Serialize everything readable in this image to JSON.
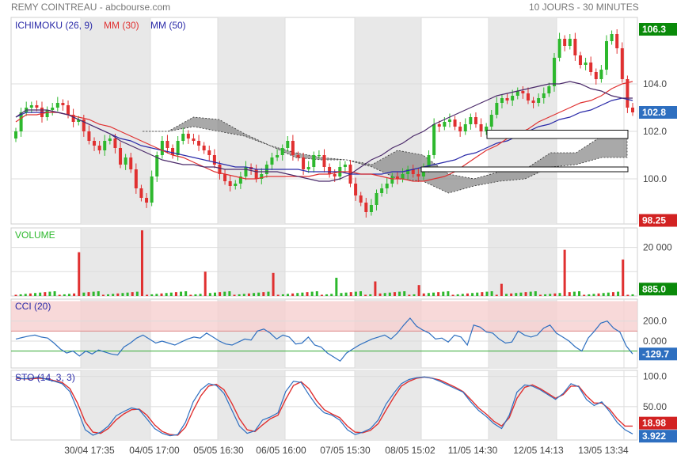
{
  "header": {
    "title": "REMY COINTREAU - abcbourse.com",
    "period": "10 JOURS - 30 MINUTES"
  },
  "colors": {
    "up": "#2db82d",
    "down": "#e03030",
    "ma30": "#e03030",
    "ma50": "#2a2aa8",
    "cloud": "#8c8c8c",
    "band": "#e8e8e8",
    "cci_high": "#f6cfcf",
    "cci_low": "#d3ecd3",
    "sto_k": "#2e6fc0",
    "sto_d": "#e03030"
  },
  "chart_data": [
    {
      "type": "line",
      "id": "price",
      "legend": [
        {
          "name": "ICHIMOKU (26, 9)",
          "color": "#2a2aa8"
        },
        {
          "name": "MM (30)",
          "color": "#e03030"
        },
        {
          "name": "MM (50)",
          "color": "#2a2aa8"
        }
      ],
      "ylim": [
        98.1,
        106.8
      ],
      "yticks": [
        100.0,
        102.0,
        104.0
      ],
      "ytick_labels": [
        "100.0",
        "102.0",
        "104.0"
      ],
      "badges": [
        {
          "value": 106.3,
          "label": "106.3",
          "color": "#0a8a0a"
        },
        {
          "value": 102.8,
          "label": "102.8",
          "color": "#2e6fc0"
        },
        {
          "value": 98.25,
          "label": "98.25",
          "color": "#d22222"
        }
      ],
      "x": [
        "30/04 17:35",
        "04/05 17:00",
        "05/05 16:30",
        "06/05 16:00",
        "07/05 15:30",
        "08/05 15:02",
        "11/05 14:30",
        "12/05 14:13",
        "13/05 13:34"
      ],
      "close_series": [
        102.0,
        102.8,
        103.0,
        103.1,
        103.0,
        102.6,
        102.9,
        103.0,
        103.2,
        103.1,
        102.7,
        102.4,
        102.5,
        102.0,
        101.6,
        101.4,
        101.2,
        101.6,
        101.7,
        101.3,
        100.6,
        100.9,
        100.4,
        99.6,
        99.2,
        99.0,
        100.1,
        101.0,
        101.6,
        101.3,
        101.0,
        101.6,
        101.9,
        101.7,
        101.6,
        101.4,
        101.2,
        101.0,
        100.6,
        100.2,
        99.9,
        99.7,
        99.8,
        100.1,
        100.5,
        100.4,
        100.0,
        100.2,
        100.6,
        100.9,
        101.0,
        101.3,
        101.6,
        101.0,
        100.9,
        100.4,
        100.5,
        101.0,
        101.0,
        100.5,
        100.2,
        100.1,
        100.5,
        100.6,
        99.8,
        99.3,
        99.0,
        98.6,
        98.9,
        99.4,
        99.6,
        99.8,
        100.1,
        100.0,
        100.2,
        100.4,
        100.2,
        100.1,
        100.5,
        101.0,
        102.3,
        102.2,
        102.4,
        102.5,
        102.2,
        102.0,
        102.3,
        102.6,
        102.3,
        102.0,
        102.2,
        102.7,
        103.2,
        103.4,
        103.3,
        103.5,
        103.7,
        103.6,
        103.3,
        103.2,
        103.4,
        103.6,
        103.9,
        105.1,
        105.9,
        105.6,
        105.9,
        105.2,
        104.8,
        104.9,
        104.5,
        104.2,
        104.6,
        105.8,
        106.1,
        105.5,
        104.2,
        103.0,
        102.8
      ],
      "ma30": [
        102.4,
        102.7,
        102.7,
        102.8,
        102.8,
        102.7,
        102.6,
        102.5,
        102.3,
        102.2,
        102.0,
        101.8,
        101.6,
        101.4,
        101.2,
        101.0,
        100.9,
        100.7,
        100.5,
        100.3,
        100.2,
        100.1,
        100.0,
        100.0,
        100.1,
        100.1,
        100.1,
        100.1,
        100.1,
        100.2,
        100.2,
        100.3,
        100.3,
        100.2,
        100.2,
        100.1,
        100.0,
        100.0,
        99.9,
        99.9,
        100.0,
        100.1,
        100.3,
        100.6,
        100.9,
        101.2,
        101.4,
        101.7,
        101.9,
        102.1,
        102.4,
        102.6,
        102.8,
        103.0,
        103.2,
        103.3,
        103.5,
        103.8,
        104.0,
        104.1
      ],
      "ma50": [
        102.6,
        102.8,
        102.8,
        102.8,
        102.8,
        102.7,
        102.5,
        102.3,
        102.1,
        101.9,
        101.7,
        101.6,
        101.4,
        101.3,
        101.2,
        101.1,
        101.0,
        100.9,
        100.8,
        100.7,
        100.6,
        100.5,
        100.5,
        100.4,
        100.4,
        100.4,
        100.4,
        100.4,
        100.3,
        100.3,
        100.3,
        100.3,
        100.2,
        100.2,
        100.2,
        100.2,
        100.3,
        100.3,
        100.4,
        100.5,
        100.6,
        100.7,
        100.8,
        101.0,
        101.1,
        101.3,
        101.5,
        101.6,
        101.8,
        102.0,
        102.2,
        102.3,
        102.5,
        102.6,
        102.8,
        102.9,
        103.1,
        103.3,
        103.4,
        103.3
      ],
      "tenkan": [
        102.6,
        102.9,
        102.9,
        102.9,
        102.8,
        102.7,
        102.5,
        102.3,
        102.1,
        101.9,
        101.6,
        101.4,
        101.2,
        101.0,
        100.8,
        100.7,
        100.6,
        100.6,
        100.5,
        100.5,
        100.4,
        100.4,
        100.4,
        100.3,
        100.3,
        100.3,
        100.2,
        100.1,
        100.0,
        99.9,
        99.9,
        100.0,
        100.2,
        100.5,
        100.8,
        101.0,
        101.3,
        101.5,
        101.8,
        102.0,
        102.3,
        102.5,
        102.7,
        102.9,
        103.1,
        103.3,
        103.5,
        103.6,
        103.7,
        103.8,
        103.9,
        104.0,
        104.0,
        104.1,
        104.0,
        103.8,
        103.7,
        103.5,
        103.4,
        103.4
      ],
      "cloud_a": [
        102.0,
        102.0,
        102.6,
        102.5,
        101.9,
        101.4,
        101.1,
        100.9,
        100.8,
        100.6,
        101.2,
        101.0,
        100.2,
        100.0,
        100.3,
        100.4,
        101.1,
        101.1,
        101.8,
        102.0
      ],
      "cloud_b": [
        102.0,
        102.0,
        102.2,
        102.0,
        101.8,
        101.4,
        100.9,
        100.8,
        100.8,
        100.5,
        100.0,
        99.9,
        99.4,
        99.7,
        99.9,
        100.0,
        100.5,
        100.6,
        100.9,
        100.9
      ],
      "boxes": [
        {
          "from": 102.05,
          "to": 101.7
        },
        {
          "from": 100.5,
          "to": 100.3
        }
      ]
    },
    {
      "type": "bar",
      "id": "volume",
      "title": "VOLUME",
      "yticks": [
        10000,
        20000
      ],
      "ytick_labels": [
        "",
        "20 000"
      ],
      "badge": {
        "value": 885.0,
        "label": "885.0",
        "color": "#0a8a0a"
      },
      "spikes": [
        {
          "index": 13,
          "value": 18000,
          "color": "#e03030"
        },
        {
          "index": 26,
          "value": 27000,
          "color": "#e03030"
        },
        {
          "index": 39,
          "value": 10000,
          "color": "#e03030"
        },
        {
          "index": 53,
          "value": 9500,
          "color": "#e03030"
        },
        {
          "index": 66,
          "value": 7500,
          "color": "#2db82d"
        },
        {
          "index": 74,
          "value": 6000,
          "color": "#e03030"
        },
        {
          "index": 83,
          "value": 4500,
          "color": "#e03030"
        },
        {
          "index": 100,
          "value": 5000,
          "color": "#e03030"
        },
        {
          "index": 113,
          "value": 19000,
          "color": "#e03030"
        },
        {
          "index": 125,
          "value": 15000,
          "color": "#e03030"
        }
      ]
    },
    {
      "type": "line",
      "id": "cci",
      "title": "CCI (20)",
      "ylim": [
        -270,
        420
      ],
      "yticks": [
        200,
        0
      ],
      "ytick_labels": [
        "200.0",
        "0.000"
      ],
      "bands": [
        {
          "from": 100,
          "to": 400
        },
        {
          "from": -250,
          "to": -100
        }
      ],
      "badge": {
        "value": -129.7,
        "label": "-129.7",
        "color": "#2e6fc0"
      },
      "values": [
        20,
        35,
        50,
        60,
        40,
        30,
        -20,
        -80,
        -120,
        -100,
        -150,
        -100,
        -130,
        -90,
        -110,
        -130,
        -140,
        -60,
        -20,
        30,
        60,
        20,
        -20,
        0,
        -20,
        -40,
        -10,
        20,
        40,
        30,
        80,
        40,
        0,
        -30,
        -40,
        -10,
        20,
        10,
        100,
        120,
        80,
        20,
        60,
        40,
        -30,
        -20,
        40,
        -40,
        -60,
        -120,
        -160,
        -200,
        -120,
        -80,
        -40,
        -10,
        20,
        40,
        60,
        20,
        80,
        160,
        230,
        150,
        110,
        80,
        20,
        30,
        -10,
        60,
        40,
        -40,
        160,
        140,
        90,
        80,
        20,
        -20,
        -10,
        100,
        60,
        40,
        60,
        130,
        160,
        80,
        40,
        0,
        -60,
        -100,
        30,
        100,
        180,
        200,
        130,
        90,
        -50,
        -130
      ]
    },
    {
      "type": "line",
      "id": "sto",
      "title": "STO (14, 3, 3)",
      "ylim": [
        -5,
        110
      ],
      "yticks": [
        100,
        50
      ],
      "ytick_labels": [
        "100.0",
        "50.00"
      ],
      "badges": [
        {
          "value": 18.98,
          "label": "18.98",
          "color": "#d22222"
        },
        {
          "value": 3.922,
          "label": "3.922",
          "color": "#2e6fc0"
        }
      ],
      "k": [
        98,
        96,
        97,
        99,
        95,
        92,
        88,
        75,
        45,
        12,
        3,
        8,
        18,
        35,
        42,
        48,
        45,
        30,
        14,
        6,
        2,
        4,
        24,
        58,
        78,
        88,
        85,
        72,
        45,
        18,
        6,
        10,
        28,
        33,
        40,
        75,
        92,
        90,
        70,
        52,
        40,
        36,
        28,
        12,
        4,
        8,
        14,
        28,
        54,
        72,
        88,
        95,
        98,
        99,
        97,
        92,
        86,
        80,
        74,
        58,
        44,
        34,
        22,
        14,
        36,
        74,
        86,
        84,
        78,
        70,
        62,
        72,
        88,
        83,
        62,
        52,
        58,
        42,
        24,
        12,
        5
      ],
      "d": [
        97,
        96,
        96,
        97,
        96,
        93,
        90,
        80,
        56,
        25,
        8,
        6,
        14,
        28,
        38,
        45,
        46,
        36,
        20,
        9,
        4,
        3,
        16,
        44,
        68,
        84,
        87,
        78,
        56,
        30,
        12,
        9,
        20,
        30,
        36,
        62,
        85,
        91,
        80,
        60,
        45,
        38,
        32,
        18,
        8,
        7,
        11,
        22,
        44,
        65,
        84,
        92,
        97,
        99,
        97,
        94,
        88,
        82,
        75,
        62,
        48,
        38,
        26,
        18,
        32,
        64,
        82,
        86,
        80,
        72,
        64,
        70,
        84,
        84,
        68,
        56,
        56,
        46,
        30,
        18,
        18
      ]
    }
  ]
}
